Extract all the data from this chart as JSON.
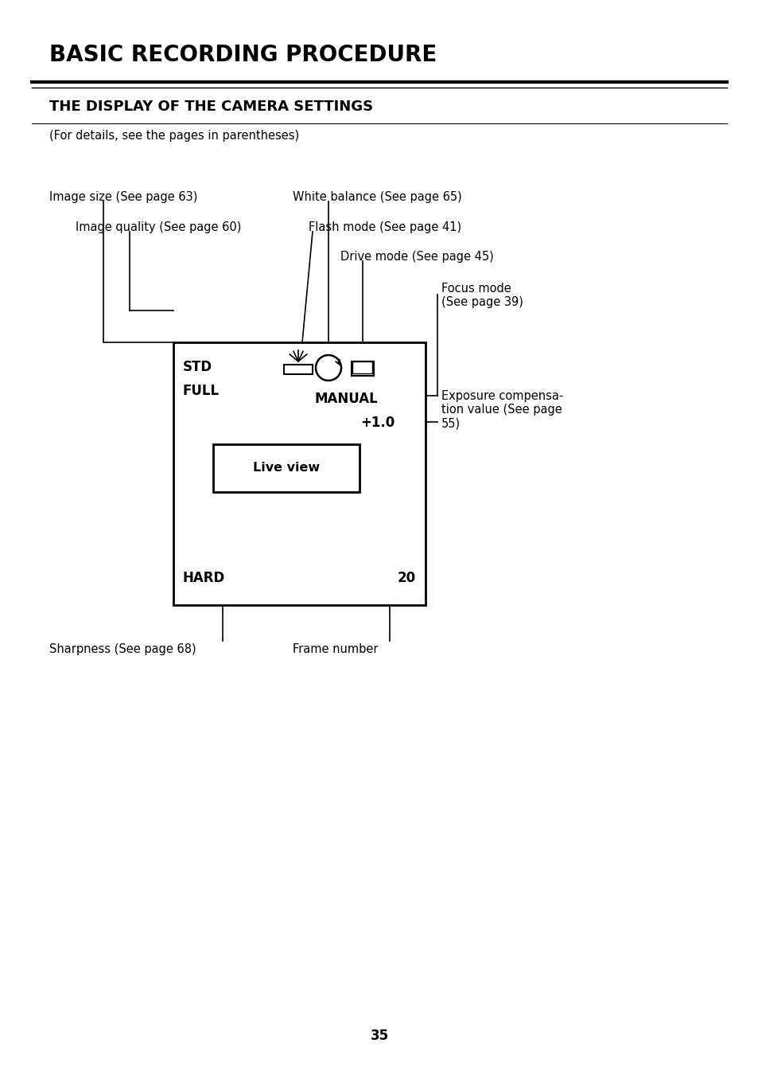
{
  "title": "BASIC RECORDING PROCEDURE",
  "subtitle": "THE DISPLAY OF THE CAMERA SETTINGS",
  "subtitle2": "(For details, see the pages in parentheses)",
  "page_number": "35",
  "bg_color": "#ffffff",
  "text_color": "#000000",
  "labels": {
    "image_size": "Image size (See page 63)",
    "image_quality": "Image quality (See page 60)",
    "white_balance": "White balance (See page 65)",
    "flash_mode": "Flash mode (See page 41)",
    "drive_mode": "Drive mode (See page 45)",
    "focus_mode": "Focus mode\n(See page 39)",
    "exposure": "Exposure compensa-\ntion value (See page\n55)",
    "sharpness": "Sharpness (See page 68)",
    "frame_number": "Frame number"
  },
  "display": {
    "std": "STD",
    "full": "FULL",
    "manual": "MANUAL",
    "plus1": "+1.0",
    "live_view": "Live view",
    "hard": "HARD",
    "twenty": "20"
  }
}
